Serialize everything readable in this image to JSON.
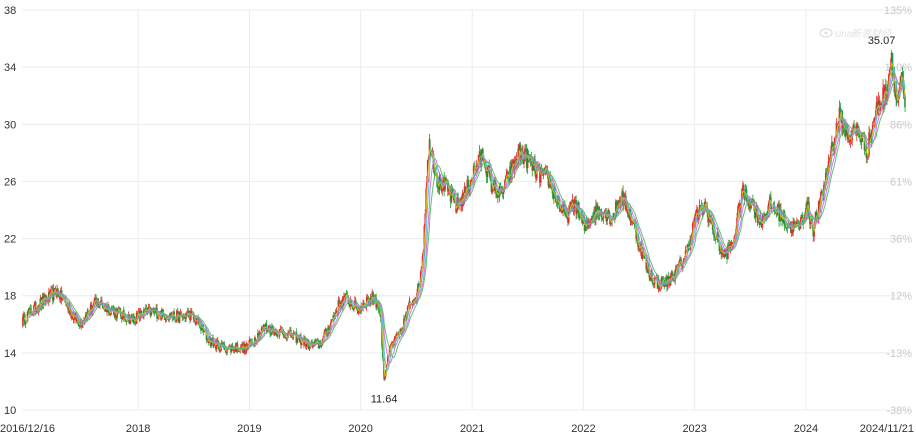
{
  "colors": {
    "up": "#e02b2b",
    "down": "#1f9b3b",
    "ma5": "#d9c226",
    "ma10": "#57b6e8",
    "ma20": "#d46bd8",
    "ma30": "#4bbf63",
    "grid": "#ececec"
  },
  "watermark": {
    "brand": "sina",
    "cn": "新浪财经",
    "icon": "sina-eye-logo-icon"
  },
  "chart_data": {
    "type": "line",
    "subtype": "candlestick-with-moving-averages",
    "title": "",
    "xlabel": "",
    "ylabel": "",
    "ylim": [
      10,
      38
    ],
    "y_ticks": [
      10,
      14,
      18,
      22,
      26,
      30,
      34,
      38
    ],
    "y_tick_labels": [
      "10",
      "14",
      "18",
      "22",
      "26",
      "30",
      "34",
      "38"
    ],
    "y2_ticks": [
      {
        "price": 38,
        "label": "135%"
      },
      {
        "price": 34,
        "label": "110%"
      },
      {
        "price": 30,
        "label": "86%"
      },
      {
        "price": 26,
        "label": "61%"
      },
      {
        "price": 22,
        "label": "36%"
      },
      {
        "price": 18,
        "label": "12%"
      },
      {
        "price": 14,
        "label": "-13%"
      },
      {
        "price": 10,
        "label": "-38%"
      }
    ],
    "x_tick_labels": [
      {
        "date": "2016-12-16",
        "label": "2016/12/16"
      },
      {
        "date": "2018-01-01",
        "label": "2018"
      },
      {
        "date": "2019-01-01",
        "label": "2019"
      },
      {
        "date": "2020-01-01",
        "label": "2020"
      },
      {
        "date": "2021-01-01",
        "label": "2021"
      },
      {
        "date": "2022-01-01",
        "label": "2022"
      },
      {
        "date": "2023-01-01",
        "label": "2023"
      },
      {
        "date": "2024-01-01",
        "label": "2024"
      },
      {
        "date": "2024-11-21",
        "label": "2024/11/21"
      }
    ],
    "grid": true,
    "series": [
      {
        "points": [
          [
            "2016-12-16",
            16.2
          ],
          [
            "2017-01-15",
            16.9
          ],
          [
            "2017-02-15",
            17.5
          ],
          [
            "2017-03-15",
            17.9
          ],
          [
            "2017-04-10",
            18.3
          ],
          [
            "2017-05-10",
            17.4
          ],
          [
            "2017-06-05",
            16.5
          ],
          [
            "2017-06-25",
            16.1
          ],
          [
            "2017-07-20",
            16.8
          ],
          [
            "2017-08-20",
            17.6
          ],
          [
            "2017-09-15",
            17.2
          ],
          [
            "2017-10-15",
            16.9
          ],
          [
            "2017-11-15",
            16.6
          ],
          [
            "2017-12-15",
            16.3
          ],
          [
            "2018-01-20",
            16.8
          ],
          [
            "2018-02-20",
            16.9
          ],
          [
            "2018-03-20",
            16.7
          ],
          [
            "2018-04-20",
            16.6
          ],
          [
            "2018-05-20",
            16.5
          ],
          [
            "2018-06-20",
            16.7
          ],
          [
            "2018-07-20",
            16.0
          ],
          [
            "2018-08-20",
            14.9
          ],
          [
            "2018-09-20",
            14.5
          ],
          [
            "2018-10-20",
            14.3
          ],
          [
            "2018-11-20",
            14.4
          ],
          [
            "2018-12-20",
            14.3
          ],
          [
            "2019-01-20",
            15.0
          ],
          [
            "2019-02-20",
            15.8
          ],
          [
            "2019-03-20",
            15.6
          ],
          [
            "2019-04-20",
            15.4
          ],
          [
            "2019-05-20",
            15.2
          ],
          [
            "2019-06-20",
            14.9
          ],
          [
            "2019-07-20",
            14.5
          ],
          [
            "2019-08-20",
            14.6
          ],
          [
            "2019-09-20",
            15.8
          ],
          [
            "2019-10-20",
            17.3
          ],
          [
            "2019-11-10",
            17.8
          ],
          [
            "2019-12-01",
            17.5
          ],
          [
            "2019-12-25",
            17.0
          ],
          [
            "2020-01-15",
            17.6
          ],
          [
            "2020-02-15",
            17.9
          ],
          [
            "2020-03-05",
            16.9
          ],
          [
            "2020-03-18",
            12.3
          ],
          [
            "2020-04-10",
            14.5
          ],
          [
            "2020-05-10",
            15.3
          ],
          [
            "2020-06-10",
            17.4
          ],
          [
            "2020-07-10",
            18.5
          ],
          [
            "2020-07-25",
            21.5
          ],
          [
            "2020-08-05",
            26.5
          ],
          [
            "2020-08-15",
            28.7
          ],
          [
            "2020-09-10",
            26.0
          ],
          [
            "2020-10-10",
            25.5
          ],
          [
            "2020-11-10",
            24.2
          ],
          [
            "2020-12-10",
            25.2
          ],
          [
            "2021-01-10",
            26.9
          ],
          [
            "2021-02-05",
            27.9
          ],
          [
            "2021-03-05",
            25.8
          ],
          [
            "2021-04-05",
            25.1
          ],
          [
            "2021-05-05",
            26.5
          ],
          [
            "2021-06-05",
            28.0
          ],
          [
            "2021-07-05",
            27.5
          ],
          [
            "2021-08-05",
            26.5
          ],
          [
            "2021-09-05",
            26.3
          ],
          [
            "2021-10-05",
            24.7
          ],
          [
            "2021-11-05",
            23.5
          ],
          [
            "2021-12-05",
            24.5
          ],
          [
            "2022-01-05",
            22.7
          ],
          [
            "2022-02-05",
            23.8
          ],
          [
            "2022-03-05",
            24.0
          ],
          [
            "2022-04-05",
            23.4
          ],
          [
            "2022-05-05",
            25.0
          ],
          [
            "2022-06-05",
            23.6
          ],
          [
            "2022-07-05",
            21.5
          ],
          [
            "2022-08-05",
            19.5
          ],
          [
            "2022-09-05",
            18.8
          ],
          [
            "2022-10-05",
            19.0
          ],
          [
            "2022-11-05",
            19.8
          ],
          [
            "2022-12-05",
            21.0
          ],
          [
            "2023-01-05",
            23.5
          ],
          [
            "2023-02-05",
            24.3
          ],
          [
            "2023-03-05",
            22.5
          ],
          [
            "2023-04-05",
            20.8
          ],
          [
            "2023-05-05",
            21.5
          ],
          [
            "2023-06-05",
            25.2
          ],
          [
            "2023-07-05",
            24.6
          ],
          [
            "2023-08-05",
            23.2
          ],
          [
            "2023-09-05",
            24.3
          ],
          [
            "2023-10-05",
            23.8
          ],
          [
            "2023-11-05",
            22.9
          ],
          [
            "2023-12-05",
            22.7
          ],
          [
            "2024-01-05",
            24.2
          ],
          [
            "2024-01-25",
            22.7
          ],
          [
            "2024-02-20",
            24.7
          ],
          [
            "2024-03-20",
            27.8
          ],
          [
            "2024-04-20",
            30.5
          ],
          [
            "2024-05-20",
            29.2
          ],
          [
            "2024-06-20",
            29.6
          ],
          [
            "2024-07-20",
            28.2
          ],
          [
            "2024-08-20",
            31.0
          ],
          [
            "2024-09-20",
            32.3
          ],
          [
            "2024-10-08",
            34.8
          ],
          [
            "2024-10-25",
            31.5
          ],
          [
            "2024-11-10",
            33.0
          ],
          [
            "2024-11-21",
            31.2
          ]
        ]
      }
    ],
    "annotations": [
      {
        "label": "35.07",
        "date": "2024-10-08",
        "value": 35.07,
        "kind": "max"
      },
      {
        "label": "11.64",
        "date": "2020-03-18",
        "value": 11.64,
        "kind": "min"
      }
    ]
  }
}
